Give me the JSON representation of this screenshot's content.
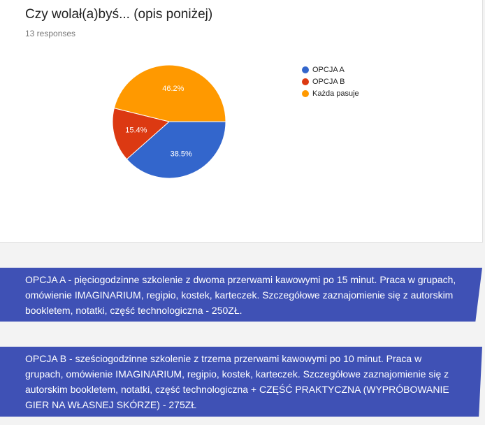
{
  "question": {
    "title": "Czy wolał(a)byś... (opis poniżej)",
    "responses": "13 responses"
  },
  "chart_data": {
    "type": "pie",
    "slices": [
      {
        "label": "OPCJA A",
        "value": 38.5,
        "color": "#3366cc",
        "pct_label": "38.5%"
      },
      {
        "label": "OPCJA B",
        "value": 15.4,
        "color": "#dc3912",
        "pct_label": "15.4%"
      },
      {
        "label": "Każda pasuje",
        "value": 46.2,
        "color": "#ff9900",
        "pct_label": "46.2%"
      }
    ],
    "legend_position": "right"
  },
  "description": {
    "option_a": "OPCJA A - pięciogodzinne szkolenie z dwoma przerwami kawowymi po 15 minut. Praca w grupach, omówienie IMAGINARIUM, regipio, kostek, karteczek. Szczegółowe zaznajomienie się z autorskim bookletem, notatki, część technologiczna - 250ZŁ.",
    "option_b": "OPCJA B - sześciogodzinne szkolenie z trzema przerwami kawowymi po 10 minut. Praca w grupach, omówienie IMAGINARIUM, regipio, kostek, karteczek. Szczegółowe zaznajomienie się z autorskim bookletem, notatki, część technologiczna + CZĘŚĆ PRAKTYCZNA (WYPRÓBOWANIE GIER NA WŁASNEJ SKÓRZE) - 275ZŁ"
  }
}
